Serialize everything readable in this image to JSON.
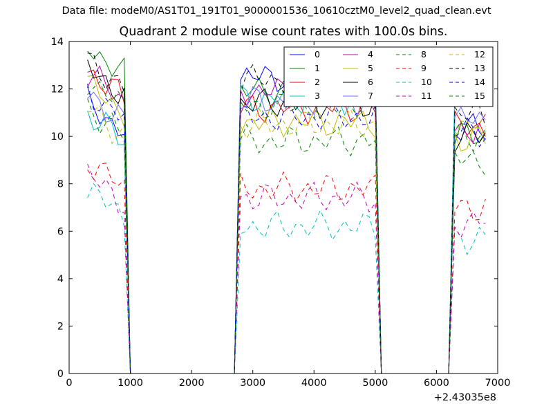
{
  "header": {
    "suptitle": "Data file: modeM0/AS1T01_191T01_9000001536_10610cztM0_level2_quad_clean.evt",
    "title": "Quadrant 2 module wise count rates with 100.0s bins."
  },
  "chart_data": {
    "type": "line",
    "title": "Quadrant 2 module wise count rates with 100.0s bins.",
    "xlabel": "",
    "ylabel": "",
    "x_offset_label": "+2.43035e8",
    "xlim": [
      0,
      7000
    ],
    "ylim": [
      0,
      14
    ],
    "xticks": [
      0,
      1000,
      2000,
      3000,
      4000,
      5000,
      6000,
      7000
    ],
    "yticks": [
      0,
      2,
      4,
      6,
      8,
      10,
      12,
      14
    ],
    "grid": false,
    "legend": {
      "placement": "top-right",
      "columns": 4
    },
    "series": [
      {
        "name": "0",
        "color": "#0000ff",
        "dash": "solid",
        "base": [
          11.4,
          12.5,
          10.3,
          0
        ]
      },
      {
        "name": "1",
        "color": "#008000",
        "dash": "solid",
        "base": [
          13.8,
          11.9,
          10.0,
          0
        ]
      },
      {
        "name": "2",
        "color": "#ff0000",
        "dash": "solid",
        "base": [
          12.8,
          11.2,
          10.4,
          0
        ]
      },
      {
        "name": "3",
        "color": "#00bfbf",
        "dash": "solid",
        "base": [
          11.0,
          11.6,
          12.2,
          0
        ]
      },
      {
        "name": "4",
        "color": "#bf00bf",
        "dash": "solid",
        "base": [
          12.7,
          11.9,
          10.3,
          0
        ]
      },
      {
        "name": "5",
        "color": "#bfbf00",
        "dash": "solid",
        "base": [
          12.2,
          10.6,
          9.9,
          0
        ]
      },
      {
        "name": "6",
        "color": "#000000",
        "dash": "solid",
        "base": [
          12.9,
          11.4,
          10.0,
          0
        ]
      },
      {
        "name": "7",
        "color": "#6b6bff",
        "dash": "solid",
        "base": [
          11.8,
          11.5,
          10.7,
          0
        ]
      },
      {
        "name": "8",
        "color": "#008000",
        "dash": "dashed",
        "base": [
          11.2,
          9.8,
          9.0,
          0
        ]
      },
      {
        "name": "9",
        "color": "#ff0000",
        "dash": "dashed",
        "base": [
          9.0,
          7.8,
          7.0,
          0
        ]
      },
      {
        "name": "10",
        "color": "#00bfbf",
        "dash": "dashed",
        "base": [
          7.8,
          6.2,
          5.7,
          0
        ]
      },
      {
        "name": "11",
        "color": "#bf00bf",
        "dash": "dashed",
        "base": [
          8.4,
          7.4,
          6.4,
          0
        ]
      },
      {
        "name": "12",
        "color": "#bfbf00",
        "dash": "dashed",
        "base": [
          11.2,
          10.5,
          10.4,
          0
        ]
      },
      {
        "name": "13",
        "color": "#000000",
        "dash": "dashed",
        "base": [
          13.2,
          12.4,
          10.9,
          0
        ]
      },
      {
        "name": "14",
        "color": "#0000ff",
        "dash": "dashed",
        "base": [
          11.9,
          10.8,
          10.2,
          0
        ]
      },
      {
        "name": "15",
        "color": "#008000",
        "dash": "dashed",
        "base": [
          12.4,
          11.3,
          10.0,
          0
        ]
      }
    ],
    "segments": [
      {
        "start": 300,
        "end": 900
      },
      {
        "start": 2800,
        "end": 5000
      },
      {
        "start": 6300,
        "end": 6800
      }
    ],
    "gap_value": 0
  }
}
